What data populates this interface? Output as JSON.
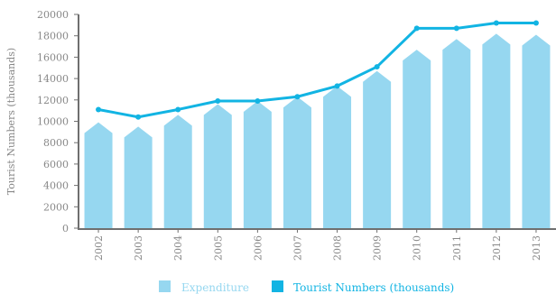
{
  "chart_data": {
    "type": "bar+line",
    "categories": [
      "2002",
      "2003",
      "2004",
      "2005",
      "2006",
      "2007",
      "2008",
      "2009",
      "2010",
      "2011",
      "2012",
      "2013"
    ],
    "series": [
      {
        "name": "Expenditure",
        "type": "bar",
        "values": [
          9900,
          9500,
          10600,
          11600,
          11900,
          12300,
          13300,
          14700,
          16700,
          17700,
          18200,
          18100
        ],
        "color": "#96d7f0"
      },
      {
        "name": "Tourist Numbers (thousands)",
        "type": "line",
        "values": [
          11100,
          10400,
          11100,
          11900,
          11900,
          12300,
          13300,
          15100,
          18700,
          18700,
          19200,
          19200
        ],
        "color": "#12b4e3"
      }
    ],
    "ylabel": "Tourist Numbers (thousands)",
    "xlabel": "",
    "ylim": [
      0,
      20000
    ],
    "yticks": [
      0,
      2000,
      4000,
      6000,
      8000,
      10000,
      12000,
      14000,
      16000,
      18000,
      20000
    ],
    "grid": false,
    "legend_position": "bottom"
  },
  "colors": {
    "bar": "#96d7f0",
    "line": "#12b4e3",
    "axis": "#6f6f6f",
    "text": "#888888"
  }
}
